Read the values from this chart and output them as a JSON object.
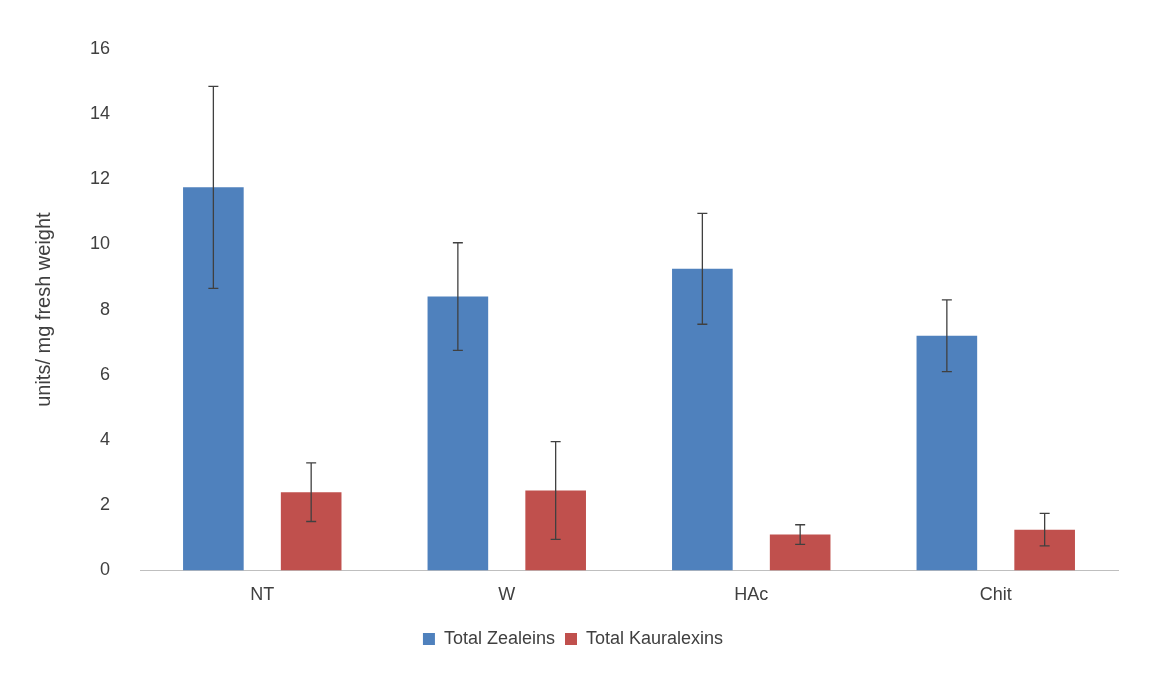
{
  "chart_data": {
    "type": "bar",
    "ylabel": "units/ mg fresh weight",
    "categories": [
      "NT",
      "W",
      "HAc",
      "Chit"
    ],
    "series": [
      {
        "name": "Total Zealeins",
        "color": "#4f81bd",
        "values": [
          11.75,
          8.4,
          9.25,
          7.2
        ],
        "errors": [
          3.1,
          1.65,
          1.7,
          1.1
        ]
      },
      {
        "name": "Total Kauralexins",
        "color": "#c0504d",
        "values": [
          2.4,
          2.45,
          1.1,
          1.25
        ],
        "errors": [
          0.9,
          1.5,
          0.3,
          0.5
        ]
      }
    ],
    "ylim": [
      0,
      16
    ],
    "yticks": [
      0,
      2,
      4,
      6,
      8,
      10,
      12,
      14,
      16
    ],
    "grid": false,
    "legend": "bottom"
  }
}
